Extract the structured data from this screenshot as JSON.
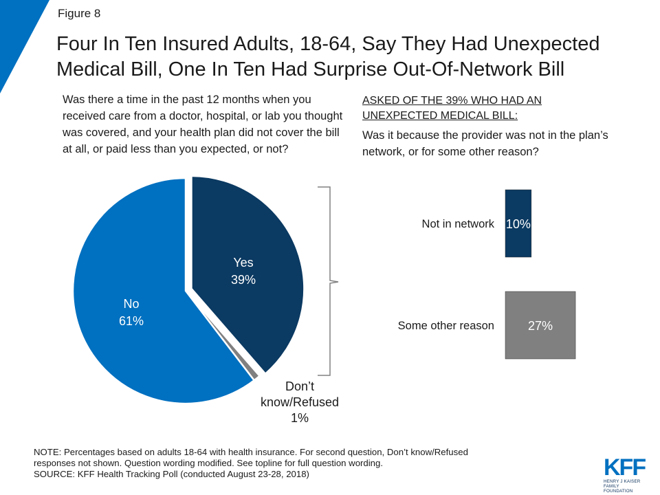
{
  "header": {
    "figure_label": "Figure 8",
    "title": "Four In Ten Insured Adults, 18-64, Say They Had Unexpected Medical Bill, One In Ten Had Surprise Out-Of-Network Bill"
  },
  "questions": {
    "q1": "Was there a time in the past 12 months when you received care from a doctor, hospital, or lab you thought was covered, and your health plan did not cover the bill at all, or paid less than you expected, or not?",
    "asked_of": "ASKED OF THE 39% WHO HAD AN UNEXPECTED MEDICAL BILL:",
    "q2": "Was it because the provider was not in the plan’s network, or for some other reason?"
  },
  "chart_data": [
    {
      "type": "pie",
      "slices": [
        {
          "label": "Yes",
          "value": 39,
          "value_label": "39%",
          "color": "#0b3a62",
          "exploded": true
        },
        {
          "label": "Don’t know/Refused",
          "value": 1,
          "value_label": "1%",
          "color": "#808080"
        },
        {
          "label": "No",
          "value": 61,
          "value_label": "61%",
          "color": "#0070c0"
        }
      ]
    },
    {
      "type": "bar",
      "orientation": "horizontal",
      "categories": [
        "Not in network",
        "Some other reason"
      ],
      "values": [
        10,
        27
      ],
      "value_labels": [
        "10%",
        "27%"
      ],
      "colors": [
        "#0b3a62",
        "#808080"
      ]
    }
  ],
  "footer": {
    "note_line1": "NOTE: Percentages based on adults 18-64 with health insurance. For second question, Don’t know/Refused",
    "note_line2": "responses not shown. Question wording modified. See topline for full question wording.",
    "source": "SOURCE: KFF Health Tracking Poll (conducted August 23-28, 2018)"
  },
  "logo": {
    "mark": "KFF",
    "sub1": "HENRY J KAISER",
    "sub2": "FAMILY FOUNDATION"
  },
  "colors": {
    "corner_accent": "#0070c0",
    "bracket": "#808080"
  }
}
